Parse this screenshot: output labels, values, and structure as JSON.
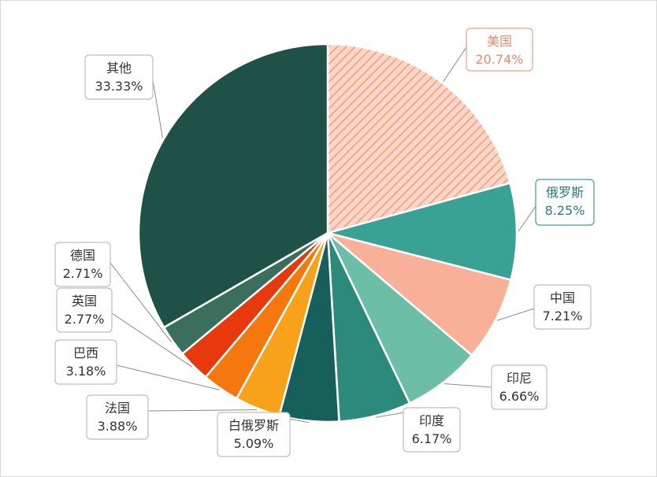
{
  "chart_data": {
    "type": "pie",
    "title": "",
    "slices": [
      {
        "name": "美国",
        "value": 20.74,
        "label": "20.74%",
        "color": "#f7b9a3",
        "hatched": true,
        "text_color": "#e98a6a",
        "border_color": "#f1a083"
      },
      {
        "name": "俄罗斯",
        "value": 8.25,
        "label": "8.25%",
        "color": "#3aa195",
        "hatched": false,
        "text_color": "#2a7b76",
        "border_color": "#3aa195"
      },
      {
        "name": "中国",
        "value": 7.21,
        "label": "7.21%",
        "color": "#f8b198",
        "hatched": false,
        "text_color": "#333333",
        "border_color": "#bdbdbd"
      },
      {
        "name": "印尼",
        "value": 6.66,
        "label": "6.66%",
        "color": "#6dbea6",
        "hatched": false,
        "text_color": "#333333",
        "border_color": "#bdbdbd"
      },
      {
        "name": "印度",
        "value": 6.17,
        "label": "6.17%",
        "color": "#2b8a7c",
        "hatched": false,
        "text_color": "#333333",
        "border_color": "#bdbdbd"
      },
      {
        "name": "白俄罗斯",
        "value": 5.09,
        "label": "5.09%",
        "color": "#165f5a",
        "hatched": false,
        "text_color": "#333333",
        "border_color": "#bdbdbd"
      },
      {
        "name": "法国",
        "value": 3.88,
        "label": "3.88%",
        "color": "#f7a21a",
        "hatched": false,
        "text_color": "#333333",
        "border_color": "#bdbdbd"
      },
      {
        "name": "巴西",
        "value": 3.18,
        "label": "3.18%",
        "color": "#f5780e",
        "hatched": false,
        "text_color": "#333333",
        "border_color": "#bdbdbd"
      },
      {
        "name": "英国",
        "value": 2.77,
        "label": "2.77%",
        "color": "#e8390e",
        "hatched": false,
        "text_color": "#333333",
        "border_color": "#bdbdbd"
      },
      {
        "name": "德国",
        "value": 2.71,
        "label": "2.71%",
        "color": "#3b6e5d",
        "hatched": false,
        "text_color": "#333333",
        "border_color": "#bdbdbd"
      },
      {
        "name": "其他",
        "value": 33.33,
        "label": "33.33%",
        "color": "#1f5247",
        "hatched": false,
        "text_color": "#333333",
        "border_color": "#bdbdbd"
      }
    ]
  }
}
